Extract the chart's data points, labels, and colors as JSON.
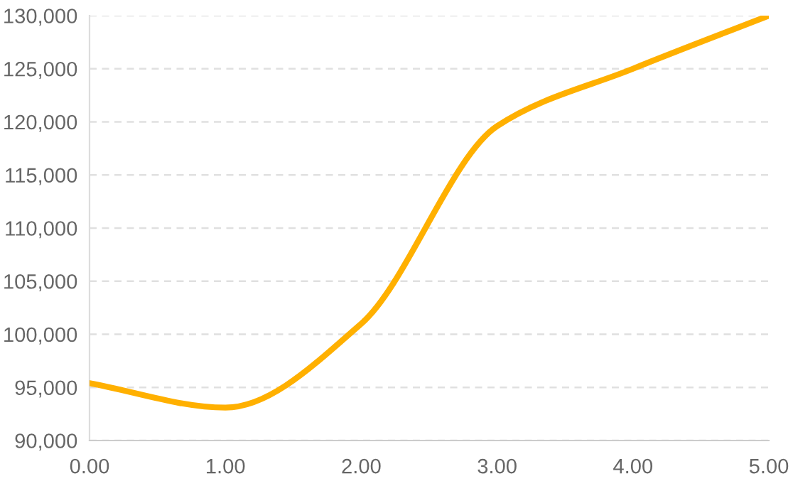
{
  "chart_data": {
    "type": "line",
    "x": [
      0,
      1,
      2,
      3,
      4,
      5
    ],
    "series": [
      {
        "color": "#ffb000",
        "values": [
          95400,
          93100,
          101000,
          119600,
          125000,
          130000
        ]
      }
    ],
    "xlim": [
      0,
      5
    ],
    "xticks": [
      {
        "value": 0,
        "label": "0.00"
      },
      {
        "value": 1,
        "label": "1.00"
      },
      {
        "value": 2,
        "label": "2.00"
      },
      {
        "value": 3,
        "label": "3.00"
      },
      {
        "value": 4,
        "label": "4.00"
      },
      {
        "value": 5,
        "label": "5.00"
      }
    ],
    "ylim": [
      90000,
      130000
    ],
    "yticks": [
      {
        "value": 90000,
        "label": "90,000"
      },
      {
        "value": 95000,
        "label": "95,000"
      },
      {
        "value": 100000,
        "label": "100,000"
      },
      {
        "value": 105000,
        "label": "105,000"
      },
      {
        "value": 110000,
        "label": "110,000"
      },
      {
        "value": 115000,
        "label": "115,000"
      },
      {
        "value": 120000,
        "label": "120,000"
      },
      {
        "value": 125000,
        "label": "125,000"
      },
      {
        "value": 130000,
        "label": "130,000"
      }
    ],
    "grid": "y",
    "marker": "none",
    "line_style": "solid"
  }
}
